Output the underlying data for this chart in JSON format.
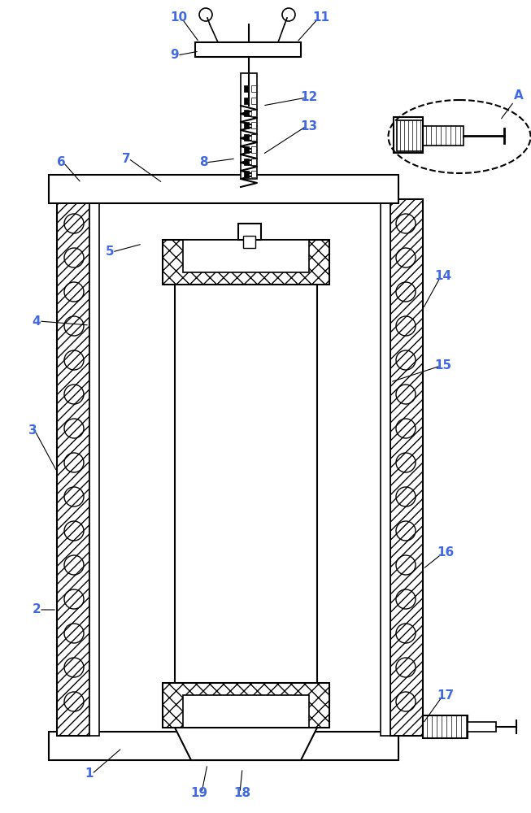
{
  "fig_width": 6.53,
  "fig_height": 10.0,
  "dpi": 100,
  "bg_color": "#ffffff",
  "line_color": "#000000",
  "hatch_color": "#000000",
  "label_color": "#4169E1",
  "label_fontsize": 11,
  "label_fontweight": "bold"
}
